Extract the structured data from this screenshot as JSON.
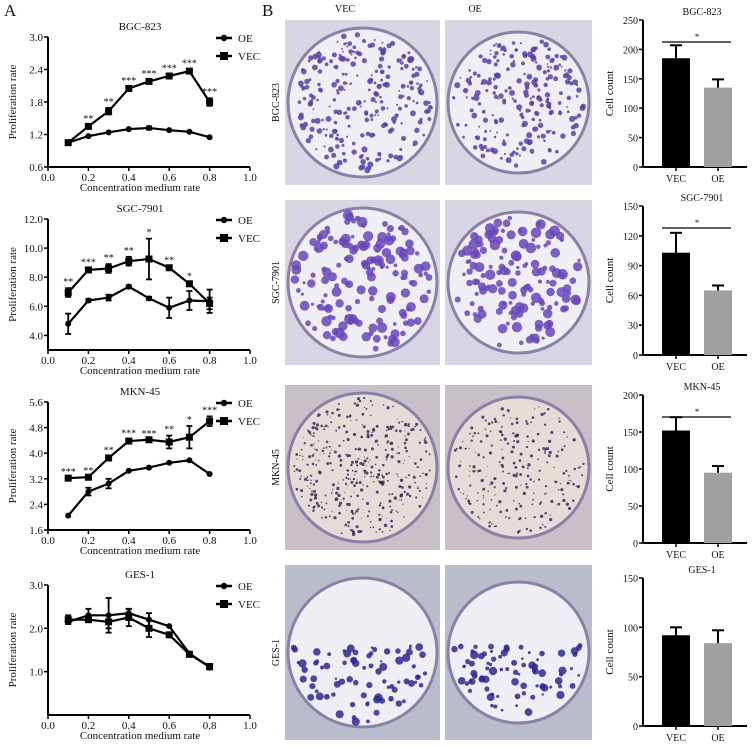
{
  "panel_labels": {
    "a": "A",
    "b": "B"
  },
  "photo_columns": [
    "VEC",
    "OE"
  ],
  "photo_rows": [
    "BGC-823",
    "SGC-7901",
    "MKN-45",
    "GES-1"
  ],
  "colors": {
    "line": "#000000",
    "vec_bar": "#000000",
    "oe_bar": "#a0a0a0",
    "stain": "#5b3fa6"
  },
  "chart_data": [
    {
      "type": "line",
      "title": "BGC-823",
      "xlabel": "Concentration medium rate",
      "ylabel": "Proliferation rate",
      "xlim": [
        0,
        1
      ],
      "xticks": [
        "0.0",
        "0.2",
        "0.4",
        "0.6",
        "0.8",
        "1.0"
      ],
      "ylim": [
        0.6,
        3.0
      ],
      "yticks": [
        "0.6",
        "1.2",
        "1.8",
        "2.4",
        "3.0"
      ],
      "legend": "top-right",
      "x": [
        0.1,
        0.2,
        0.3,
        0.4,
        0.5,
        0.6,
        0.7,
        0.8
      ],
      "series": [
        {
          "name": "OE",
          "marker": "circle",
          "values": [
            1.05,
            1.17,
            1.24,
            1.3,
            1.32,
            1.28,
            1.25,
            1.15
          ],
          "errors": [
            0,
            0,
            0,
            0,
            0.03,
            0,
            0,
            0
          ]
        },
        {
          "name": "VEC",
          "marker": "square",
          "values": [
            1.05,
            1.35,
            1.63,
            2.05,
            2.18,
            2.28,
            2.37,
            1.8
          ],
          "errors": [
            0,
            0.03,
            0.06,
            0.03,
            0.03,
            0.03,
            0.03,
            0.07
          ]
        }
      ],
      "significance": [
        "",
        "**",
        "**",
        "***",
        "***",
        "***",
        "***",
        "***"
      ]
    },
    {
      "type": "line",
      "title": "SGC-7901",
      "xlabel": "Concentration medium rate",
      "ylabel": "Proliferation rate",
      "xlim": [
        0,
        1
      ],
      "xticks": [
        "0.0",
        "0.2",
        "0.4",
        "0.6",
        "0.8",
        "1.0"
      ],
      "ylim": [
        3.0,
        12.0
      ],
      "yticks": [
        "4.0",
        "6.0",
        "8.0",
        "10.0",
        "12.0"
      ],
      "legend": "top-right",
      "x": [
        0.1,
        0.2,
        0.3,
        0.4,
        0.5,
        0.6,
        0.7,
        0.8
      ],
      "series": [
        {
          "name": "OE",
          "marker": "circle",
          "values": [
            4.8,
            6.4,
            6.6,
            7.35,
            6.55,
            5.9,
            6.4,
            6.35
          ],
          "errors": [
            0.7,
            0.1,
            0.2,
            0.1,
            0.1,
            0.7,
            0.65,
            0.8
          ]
        },
        {
          "name": "VEC",
          "marker": "square",
          "values": [
            6.95,
            8.5,
            8.6,
            9.1,
            9.25,
            8.65,
            7.55,
            6.2
          ],
          "errors": [
            0.3,
            0.1,
            0.3,
            0.3,
            1.4,
            0.1,
            0.1,
            0.4
          ]
        }
      ],
      "significance": [
        "**",
        "***",
        "**",
        "**",
        "*",
        "**",
        "*",
        ""
      ]
    },
    {
      "type": "line",
      "title": "MKN-45",
      "xlabel": "Concentration medium rate",
      "ylabel": "Proliferation rate",
      "xlim": [
        0,
        1
      ],
      "xticks": [
        "0.0",
        "0.2",
        "0.4",
        "0.6",
        "0.8",
        "1.0"
      ],
      "ylim": [
        1.6,
        5.6
      ],
      "yticks": [
        "1.6",
        "2.4",
        "3.2",
        "4.0",
        "4.8",
        "5.6"
      ],
      "legend": "top-right",
      "x": [
        0.1,
        0.2,
        0.3,
        0.4,
        0.5,
        0.6,
        0.7,
        0.8
      ],
      "series": [
        {
          "name": "OE",
          "marker": "circle",
          "values": [
            2.05,
            2.8,
            3.05,
            3.45,
            3.55,
            3.7,
            3.78,
            3.35
          ],
          "errors": [
            0,
            0.12,
            0.15,
            0,
            0,
            0,
            0,
            0
          ]
        },
        {
          "name": "VEC",
          "marker": "square",
          "values": [
            3.22,
            3.25,
            3.85,
            4.38,
            4.42,
            4.35,
            4.5,
            5.0
          ],
          "errors": [
            0,
            0,
            0.05,
            0.05,
            0,
            0.2,
            0.35,
            0.15
          ]
        }
      ],
      "significance": [
        "***",
        "**",
        "**",
        "***",
        "***",
        "**",
        "*",
        "***"
      ]
    },
    {
      "type": "line",
      "title": "GES-1",
      "xlabel": "Concentration medium rate",
      "ylabel": "Proliferation rate",
      "xlim": [
        0,
        1
      ],
      "xticks": [
        "0.0",
        "0.2",
        "0.4",
        "0.6",
        "0.8",
        "1.0"
      ],
      "ylim": [
        0,
        3.0
      ],
      "yticks": [
        "1.0",
        "2.0",
        "3.0"
      ],
      "legend": "top-right",
      "x": [
        0.1,
        0.2,
        0.3,
        0.4,
        0.5,
        0.6,
        0.7,
        0.8
      ],
      "series": [
        {
          "name": "OE",
          "marker": "circle",
          "values": [
            2.15,
            2.3,
            2.3,
            2.35,
            2.2,
            2.05,
            1.42,
            1.1
          ],
          "errors": [
            0.05,
            0.15,
            0.4,
            0.1,
            0.15,
            0,
            0,
            0.05
          ]
        },
        {
          "name": "VEC",
          "marker": "square",
          "values": [
            2.2,
            2.2,
            2.15,
            2.25,
            2.0,
            1.85,
            1.4,
            1.12
          ],
          "errors": [
            0.1,
            0.05,
            0.15,
            0.2,
            0.2,
            0,
            0,
            0
          ]
        }
      ],
      "significance": [
        "",
        "",
        "",
        "",
        "",
        "",
        "",
        ""
      ]
    },
    {
      "type": "bar",
      "title": "BGC-823",
      "ylabel": "Cell count",
      "categories": [
        "VEC",
        "OE"
      ],
      "values": [
        185,
        135
      ],
      "errors": [
        22,
        14
      ],
      "ylim": [
        0,
        250
      ],
      "yticks": [
        "0",
        "50",
        "100",
        "150",
        "200",
        "250"
      ],
      "significance": "*"
    },
    {
      "type": "bar",
      "title": "SGC-7901",
      "ylabel": "Cell count",
      "categories": [
        "VEC",
        "OE"
      ],
      "values": [
        103,
        65
      ],
      "errors": [
        20,
        5
      ],
      "ylim": [
        0,
        150
      ],
      "yticks": [
        "0",
        "30",
        "60",
        "90",
        "120",
        "150"
      ],
      "significance": "*"
    },
    {
      "type": "bar",
      "title": "MKN-45",
      "ylabel": "Cell count",
      "categories": [
        "VEC",
        "OE"
      ],
      "values": [
        152,
        95
      ],
      "errors": [
        18,
        9
      ],
      "ylim": [
        0,
        200
      ],
      "yticks": [
        "0",
        "50",
        "100",
        "150",
        "200"
      ],
      "significance": "*"
    },
    {
      "type": "bar",
      "title": "GES-1",
      "ylabel": "Cell count",
      "categories": [
        "VEC",
        "OE"
      ],
      "values": [
        92,
        84
      ],
      "errors": [
        8,
        13
      ],
      "ylim": [
        0,
        150
      ],
      "yticks": [
        "0",
        "50",
        "100",
        "150"
      ],
      "significance": ""
    }
  ]
}
